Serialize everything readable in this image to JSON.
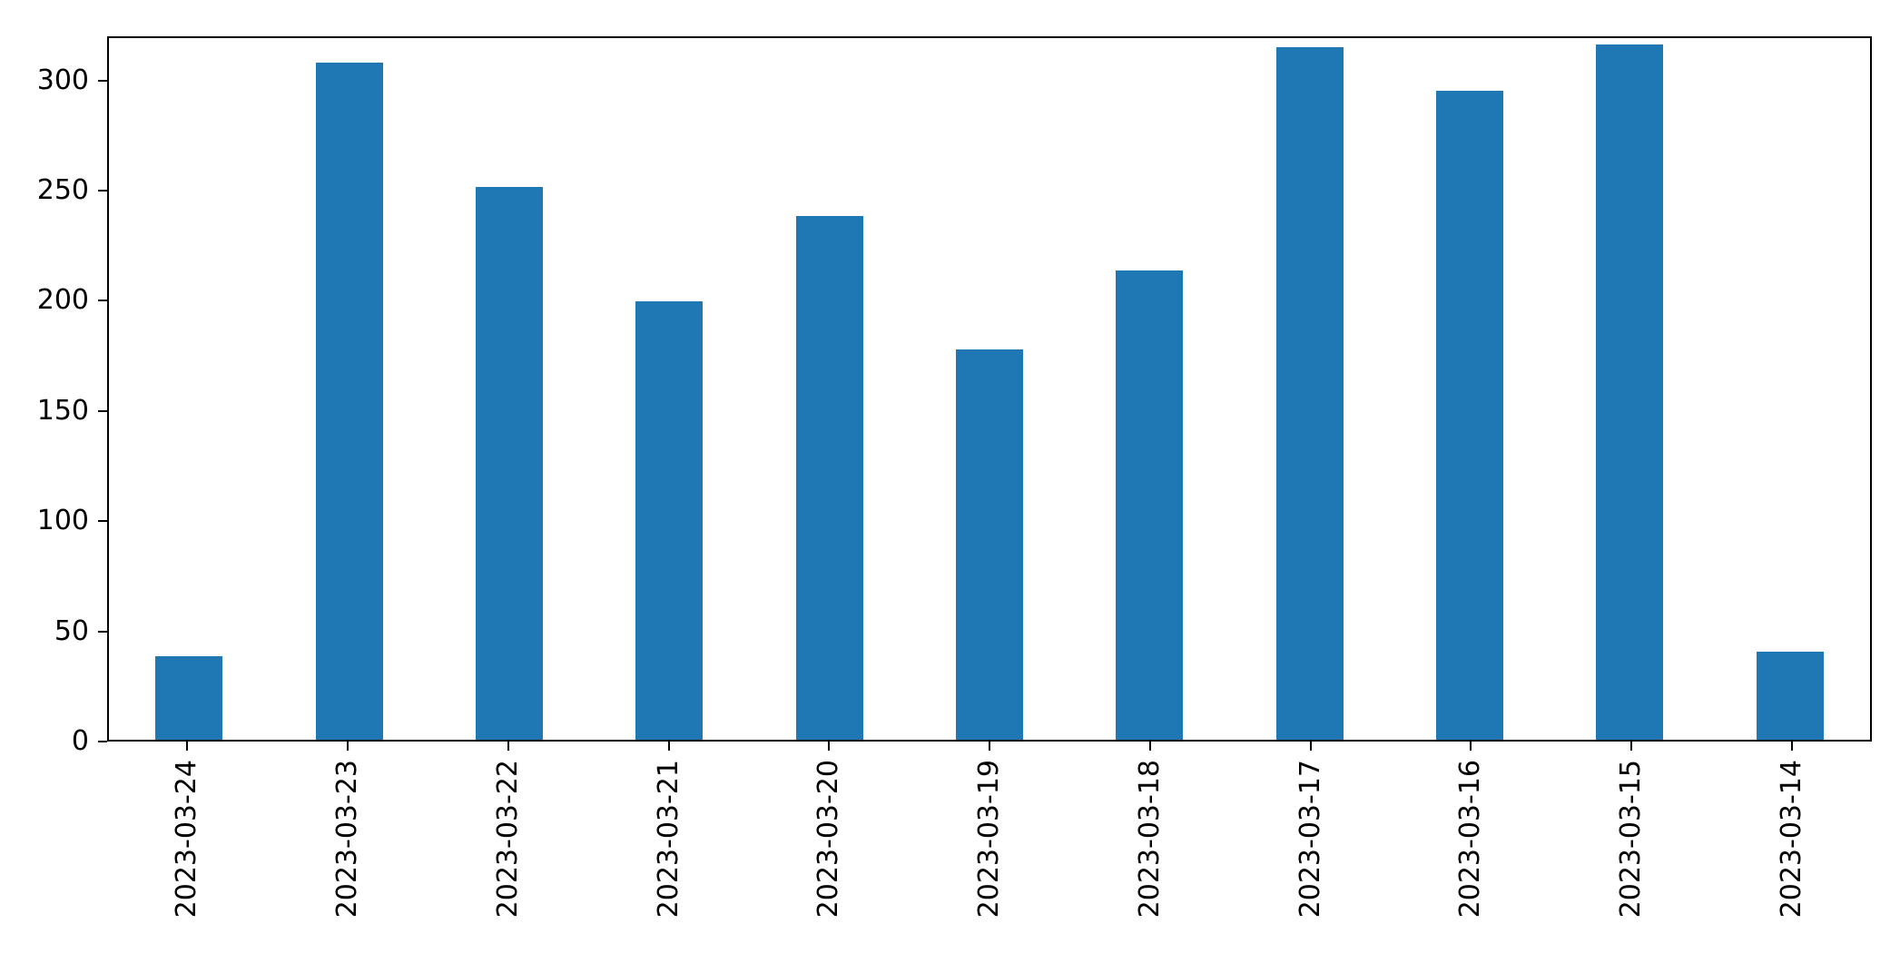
{
  "figure": {
    "background": "#ffffff",
    "axes_border_color": "#000000"
  },
  "chart_data": {
    "type": "bar",
    "categories": [
      "2023-03-24",
      "2023-03-23",
      "2023-03-22",
      "2023-03-21",
      "2023-03-20",
      "2023-03-19",
      "2023-03-18",
      "2023-03-17",
      "2023-03-16",
      "2023-03-15",
      "2023-03-14"
    ],
    "values": [
      38,
      309,
      252,
      200,
      239,
      178,
      214,
      316,
      296,
      317,
      40
    ],
    "title": "",
    "xlabel": "",
    "ylabel": "",
    "ylim": [
      0,
      320
    ],
    "yticks": [
      0,
      50,
      100,
      150,
      200,
      250,
      300
    ],
    "bar_color": "#1f77b4",
    "bar_width_fraction": 0.42,
    "grid": false,
    "legend_position": "none",
    "x_tick_rotation": 90
  }
}
